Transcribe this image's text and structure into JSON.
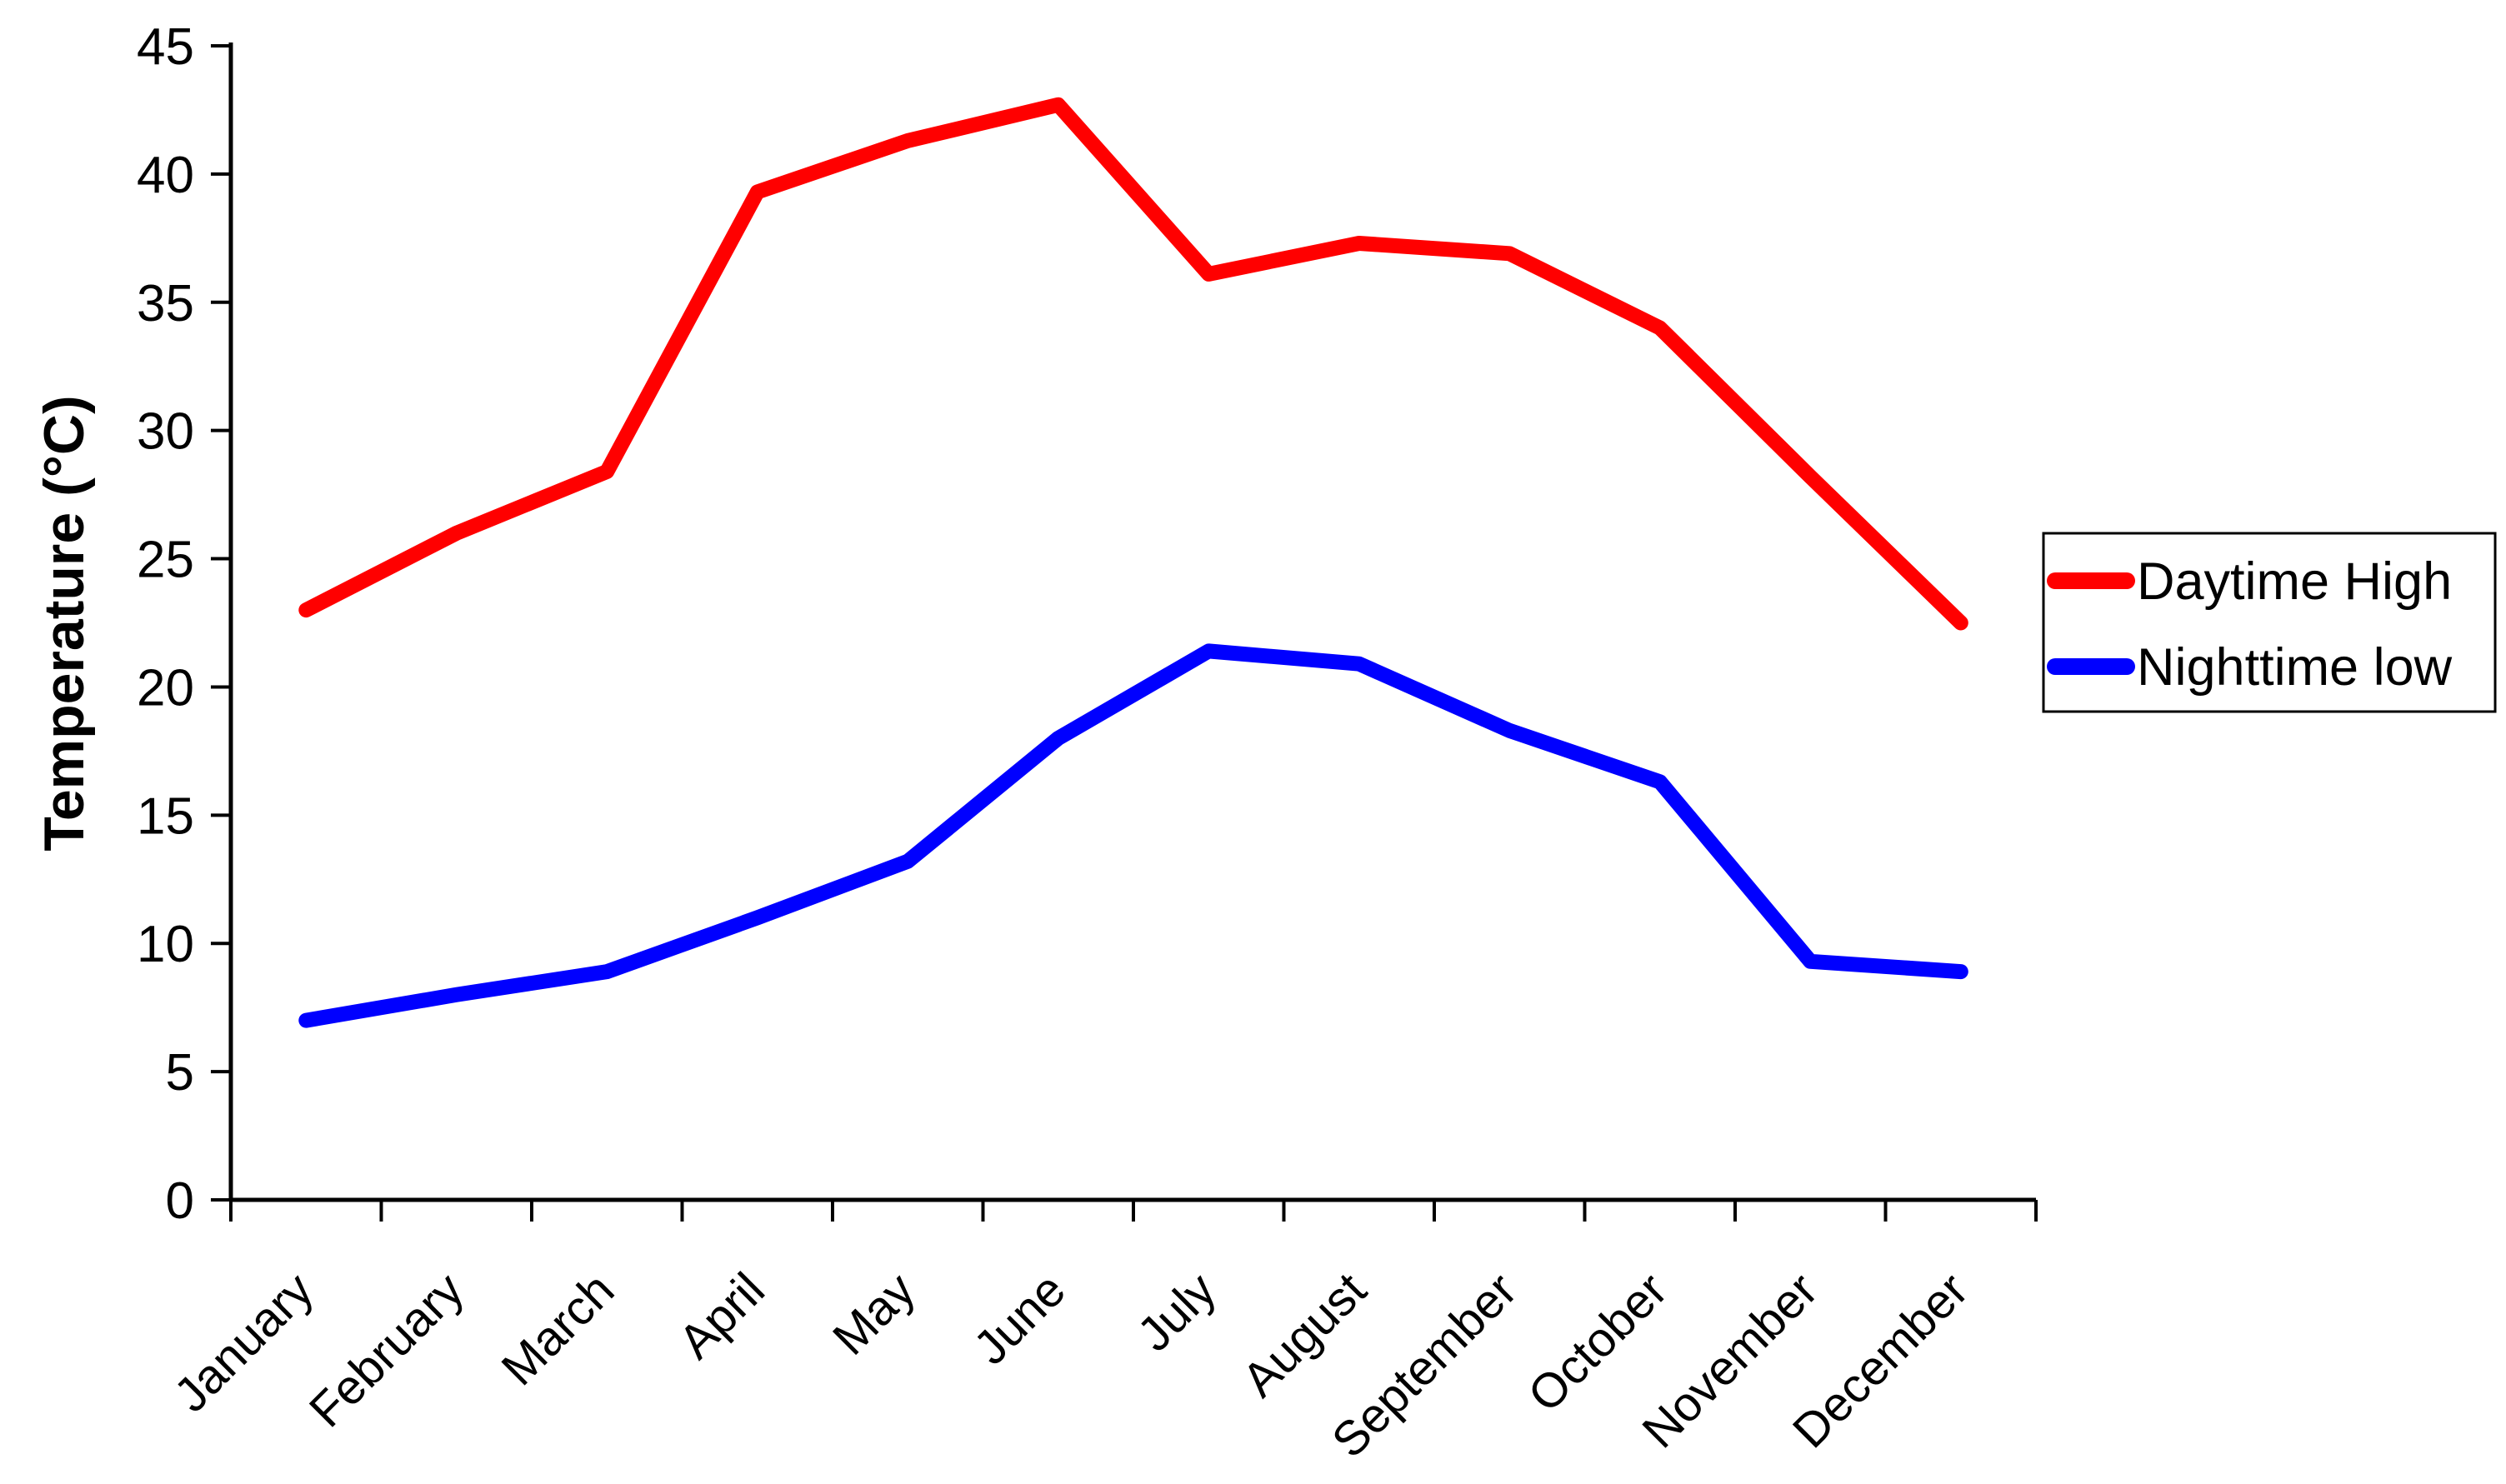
{
  "chart_data": {
    "type": "line",
    "title": "",
    "xlabel": "",
    "ylabel": "Temperature (°C)",
    "categories": [
      "January",
      "February",
      "March",
      "April",
      "May",
      "June",
      "July",
      "August",
      "September",
      "October",
      "November",
      "December"
    ],
    "series": [
      {
        "name": "Daytime High",
        "color": "#ff0000",
        "values": [
          23.0,
          26.0,
          28.4,
          39.3,
          41.3,
          42.7,
          36.1,
          37.3,
          36.9,
          34.0,
          28.2,
          22.5
        ]
      },
      {
        "name": "Nighttime low",
        "color": "#0000ff",
        "values": [
          7.0,
          8.0,
          8.9,
          11.0,
          13.2,
          18.0,
          21.4,
          20.9,
          18.3,
          16.3,
          9.3,
          8.9
        ]
      }
    ],
    "ylim": [
      0,
      45
    ],
    "yticks": [
      0,
      5,
      10,
      15,
      20,
      25,
      30,
      35,
      40,
      45
    ],
    "grid": false,
    "legend_position": "right",
    "legend": [
      "Daytime High",
      "Nighttime low"
    ],
    "axis_color": "#000000"
  }
}
